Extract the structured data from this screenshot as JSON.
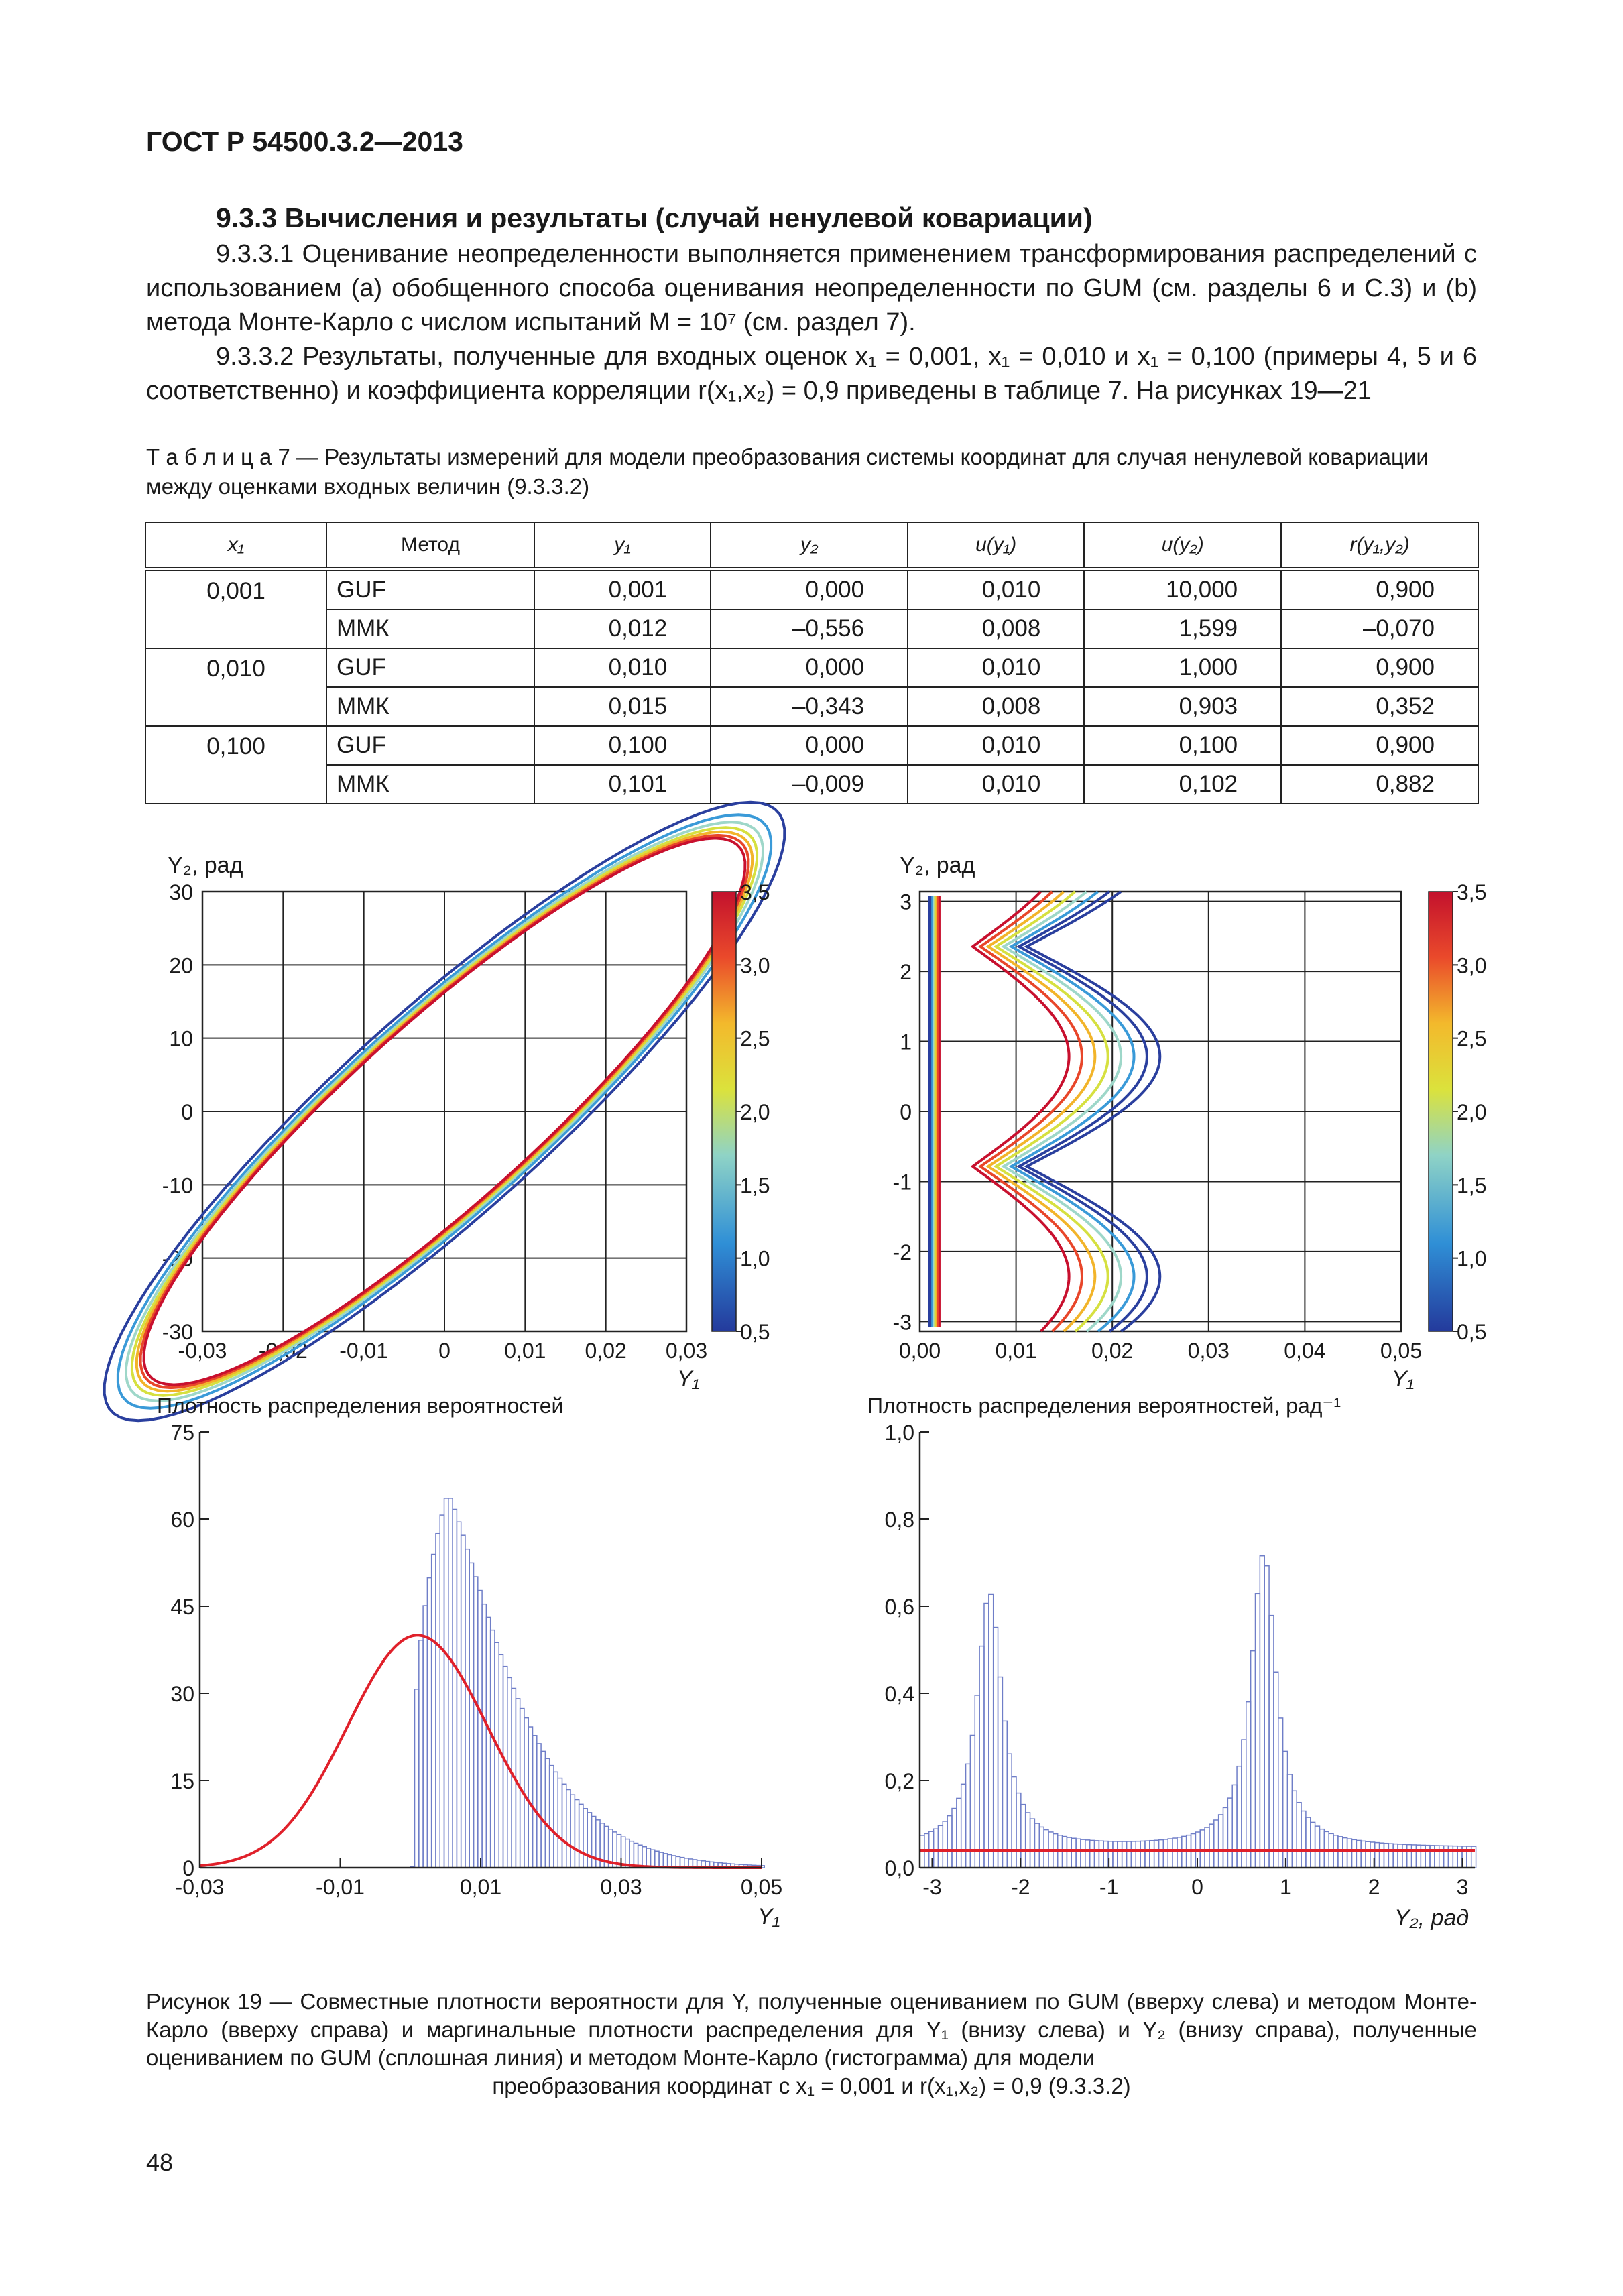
{
  "header": "ГОСТ Р 54500.3.2—2013",
  "section_title": "9.3.3 Вычисления и результаты (случай ненулевой ковариации)",
  "para1": "9.3.3.1 Оценивание неопределенности выполняется применением трансформирования распределений с использованием (а) обобщенного способа оценивания неопределенности по GUM (см. разделы 6 и C.3) и (b) метода Монте-Карло с числом испытаний M = 10⁷ (см. раздел 7).",
  "para2": "9.3.3.2 Результаты, полученные для входных оценок x₁ = 0,001, x₁ = 0,010 и x₁ = 0,100 (примеры 4, 5 и 6 соответственно) и коэффициента корреляции r(x₁,x₂) = 0,9 приведены в таблице 7. На рисунках 19—21",
  "table_caption": "Т а б л и ц а  7 — Результаты измерений для модели преобразования системы координат для случая ненулевой ковариации между оценками входных величин (9.3.3.2)",
  "table": {
    "headers": [
      "x₁",
      "Метод",
      "y₁",
      "y₂",
      "u(y₁)",
      "u(y₂)",
      "r(y₁,y₂)"
    ],
    "groups": [
      {
        "x1": "0,001",
        "rows": [
          [
            "GUF",
            "0,001",
            "0,000",
            "0,010",
            "10,000",
            "0,900"
          ],
          [
            "ММК",
            "0,012",
            "–0,556",
            "0,008",
            "1,599",
            "–0,070"
          ]
        ]
      },
      {
        "x1": "0,010",
        "rows": [
          [
            "GUF",
            "0,010",
            "0,000",
            "0,010",
            "1,000",
            "0,900"
          ],
          [
            "ММК",
            "0,015",
            "–0,343",
            "0,008",
            "0,903",
            "0,352"
          ]
        ]
      },
      {
        "x1": "0,100",
        "rows": [
          [
            "GUF",
            "0,100",
            "0,000",
            "0,010",
            "0,100",
            "0,900"
          ],
          [
            "ММК",
            "0,101",
            "–0,009",
            "0,010",
            "0,102",
            "0,882"
          ]
        ]
      }
    ]
  },
  "chart_data": [
    {
      "type": "contour",
      "ylabel": "Y₂, рад",
      "xlabel": "Y₁",
      "x_ticks": [
        "-0,03",
        "-0,02",
        "-0,01",
        "0",
        "0,01",
        "0,02",
        "0,03"
      ],
      "y_ticks": [
        "30",
        "20",
        "10",
        "0",
        "-10",
        "-20",
        "-30"
      ],
      "xlim": [
        -0.03,
        0.03
      ],
      "ylim": [
        -30,
        30
      ],
      "colorbar_ticks": [
        "3,5",
        "3,0",
        "2,5",
        "2,0",
        "1,5",
        "1,0",
        "0,5"
      ],
      "contour_levels": [
        0.5,
        1.0,
        1.5,
        2.0,
        2.5,
        3.0,
        3.5
      ],
      "correlation": 0.9,
      "mean": [
        0,
        0
      ],
      "std": [
        0.01,
        10
      ]
    },
    {
      "type": "contour",
      "ylabel": "Y₂, рад",
      "xlabel": "Y₁",
      "x_ticks": [
        "0,00",
        "0,01",
        "0,02",
        "0,03",
        "0,04",
        "0,05"
      ],
      "y_ticks": [
        "3",
        "2",
        "1",
        "0",
        "-1",
        "-2",
        "-3"
      ],
      "xlim": [
        0,
        0.05
      ],
      "ylim": [
        -3.14,
        3.14
      ],
      "colorbar_ticks": [
        "3,5",
        "3,0",
        "2,5",
        "2,0",
        "1,5",
        "1,0",
        "0,5"
      ]
    },
    {
      "type": "histogram",
      "title": "Плотность распределения вероятностей",
      "xlabel": "Y₁",
      "x_ticks": [
        "-0,03",
        "-0,01",
        "0,01",
        "0,03",
        "0,05"
      ],
      "y_ticks": [
        "75",
        "60",
        "45",
        "30",
        "15",
        "0"
      ],
      "xlim": [
        -0.03,
        0.05
      ],
      "ylim": [
        0,
        75
      ],
      "gum_curve": {
        "mean": 0.001,
        "std": 0.01,
        "peak": 40
      },
      "histogram_peak": {
        "x": 0.005,
        "y": 64.5
      },
      "histogram_start": 0.0
    },
    {
      "type": "histogram",
      "title": "Плотность распределения вероятностей, рад⁻¹",
      "xlabel": "Y₂, рад",
      "x_ticks": [
        "-3",
        "-2",
        "-1",
        "0",
        "1",
        "2",
        "3"
      ],
      "y_ticks": [
        "1,0",
        "0,8",
        "0,6",
        "0,4",
        "0,2",
        "0,0"
      ],
      "xlim": [
        -3.14,
        3.14
      ],
      "ylim": [
        0,
        1.0
      ],
      "gum_line": 0.04,
      "peaks": [
        {
          "x": -2.35,
          "y": 0.63
        },
        {
          "x": 0.75,
          "y": 0.72
        }
      ]
    }
  ],
  "figure_caption": "Рисунок 19 — Совместные плотности вероятности для Y, полученные оцениванием по GUM (вверху слева) и методом Монте-Карло (вверху справа) и маргинальные плотности распределения для Y₁ (внизу слева) и Y₂ (внизу справа), полученные оцениванием по GUM (сплошная линия) и методом Монте-Карло (гистограмма) для модели",
  "figure_caption_last": "преобразования координат с x₁ = 0,001 и r(x₁,x₂) = 0,9 (9.3.3.2)",
  "page_number": "48",
  "colors": {
    "contour": [
      "#2a3f9e",
      "#3a9ad8",
      "#9ed7c9",
      "#d6e040",
      "#f2b42a",
      "#e8462a",
      "#c8102e"
    ],
    "hist": "#6f7ec8",
    "gum": "#e0202a"
  }
}
